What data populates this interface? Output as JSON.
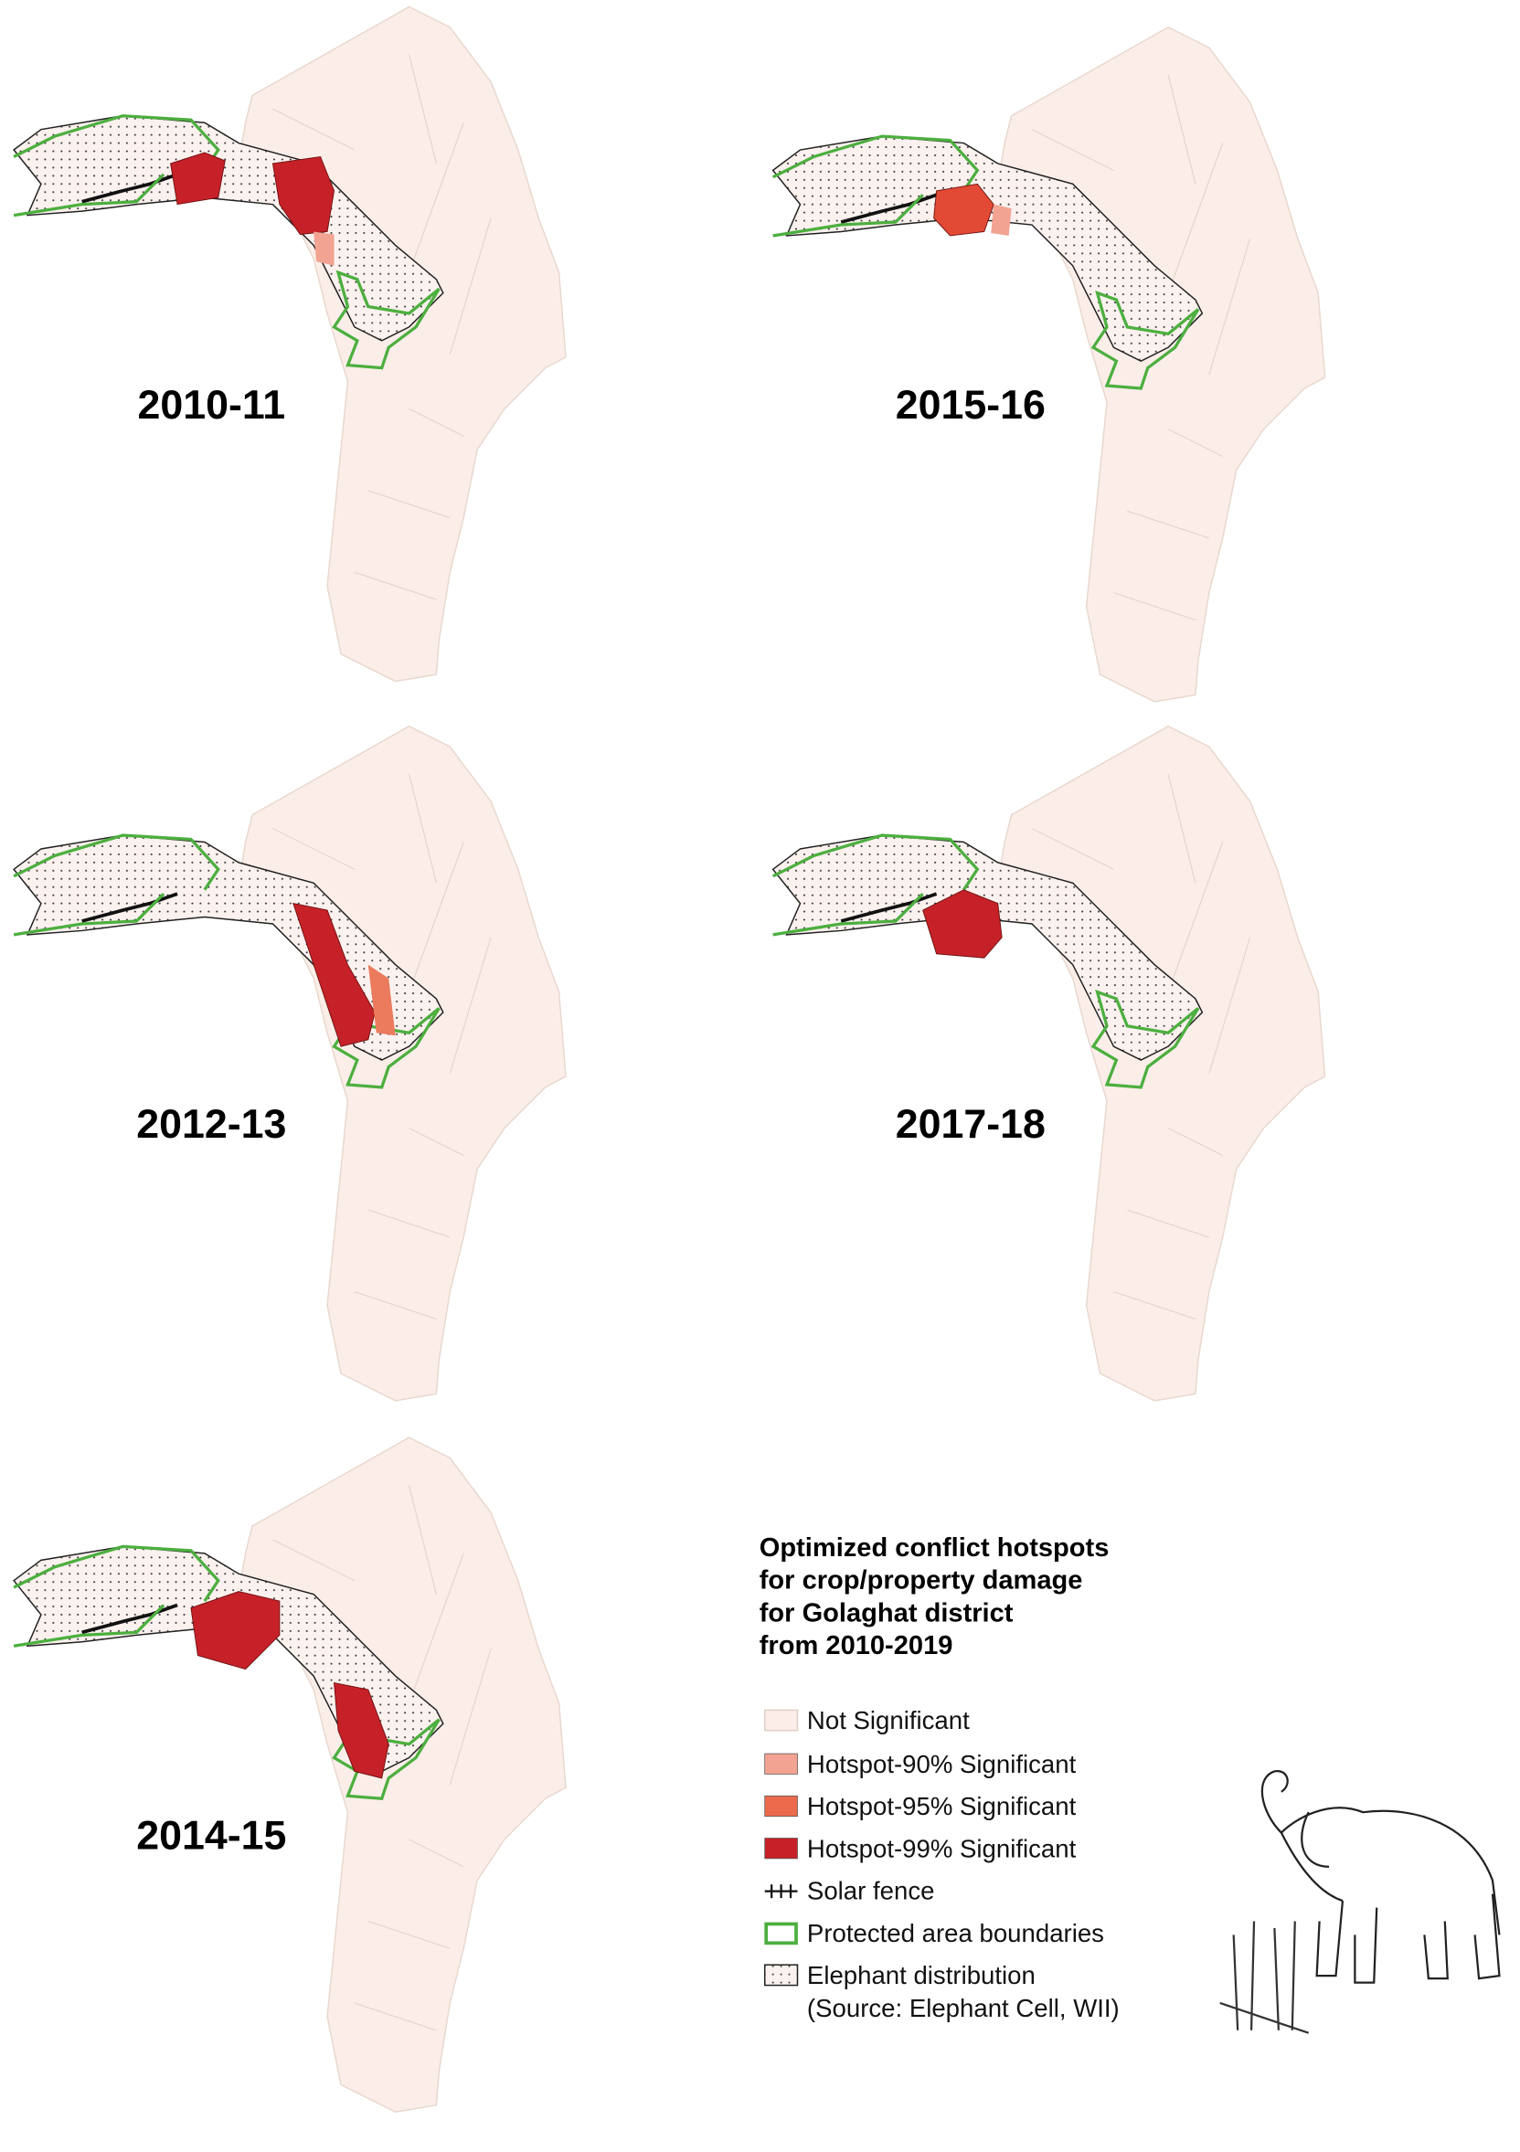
{
  "panels": [
    {
      "label": "2010-11"
    },
    {
      "label": "2015-16"
    },
    {
      "label": "2012-13"
    },
    {
      "label": "2017-18"
    },
    {
      "label": "2014-15"
    }
  ],
  "legend": {
    "title_lines": [
      "Optimized conflict hotspots",
      "for crop/property damage",
      "for Golaghat district",
      "from 2010-2019"
    ],
    "items": [
      "Not Significant",
      "Hotspot-90% Significant",
      "Hotspot-95% Significant",
      "Hotspot-99% Significant",
      "Solar fence",
      "Protected area boundaries",
      "Elephant distribution"
    ],
    "source": "(Source: Elephant Cell, WII)"
  }
}
